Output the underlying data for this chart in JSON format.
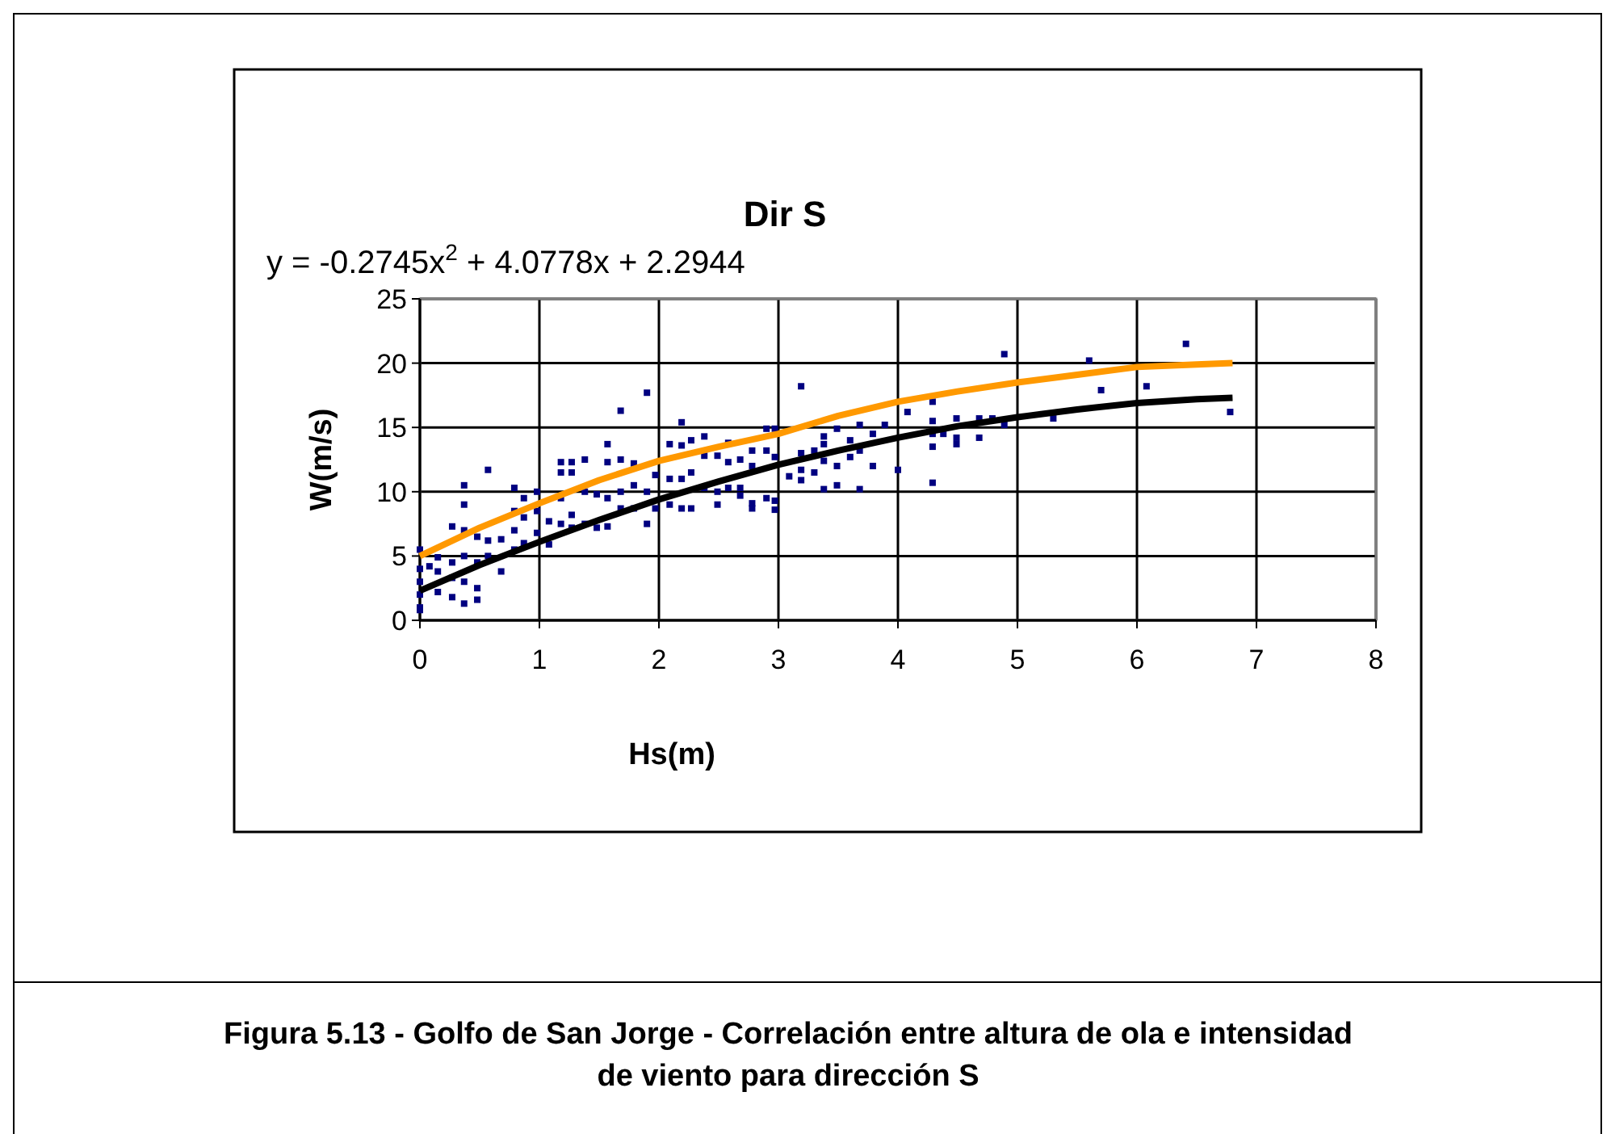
{
  "chart_data": {
    "type": "scatter",
    "title": "Dir S",
    "xlabel": "Hs(m)",
    "ylabel": "W(m/s)",
    "annotations": [
      "y = -0.2745x$^{2}$ + 4.0778x + 2.2944",
      "Figura 5.13 -  Golfo de San Jorge - Correlación entre altura de ola  e intensidad de viento para dirección S"
    ],
    "xlim": [
      0,
      8
    ],
    "ylim": [
      0,
      25
    ],
    "xticks": [
      0,
      1,
      2,
      3,
      4,
      5,
      6,
      7,
      8
    ],
    "yticks": [
      0,
      5,
      10,
      15,
      20,
      25
    ],
    "grid": true,
    "series": [
      {
        "color": "#000080",
        "marker": "square",
        "x": [
          0,
          0,
          0,
          0,
          0,
          0,
          0.08,
          0.15,
          0.15,
          0.15,
          0.27,
          0.27,
          0.27,
          0.27,
          0.37,
          0.37,
          0.37,
          0.37,
          0.37,
          0.37,
          0.48,
          0.48,
          0.48,
          0.48,
          0.57,
          0.57,
          0.57,
          0.68,
          0.68,
          0.79,
          0.79,
          0.79,
          0.79,
          0.87,
          0.87,
          0.87,
          0.98,
          0.98,
          0.98,
          1.08,
          1.08,
          1.18,
          1.18,
          1.18,
          1.18,
          1.27,
          1.27,
          1.27,
          1.27,
          1.38,
          1.38,
          1.38,
          1.48,
          1.48,
          1.57,
          1.57,
          1.57,
          1.57,
          1.68,
          1.68,
          1.68,
          1.68,
          1.79,
          1.79,
          1.79,
          1.9,
          1.9,
          1.9,
          1.97,
          1.97,
          2.09,
          2.09,
          2.09,
          2.19,
          2.19,
          2.19,
          2.19,
          2.27,
          2.27,
          2.27,
          2.38,
          2.38,
          2.38,
          2.49,
          2.49,
          2.49,
          2.58,
          2.58,
          2.58,
          2.68,
          2.68,
          2.68,
          2.78,
          2.78,
          2.78,
          2.78,
          2.9,
          2.9,
          2.9,
          2.97,
          2.97,
          2.97,
          2.97,
          3.09,
          3.19,
          3.19,
          3.19,
          3.19,
          3.3,
          3.3,
          3.38,
          3.38,
          3.38,
          3.38,
          3.49,
          3.49,
          3.49,
          3.6,
          3.6,
          3.68,
          3.68,
          3.68,
          3.79,
          3.79,
          3.89,
          4.0,
          4.08,
          4.29,
          4.29,
          4.29,
          4.29,
          4.29,
          4.38,
          4.49,
          4.49,
          4.49,
          4.68,
          4.68,
          4.79,
          4.89,
          4.89,
          5.3,
          5.6,
          5.7,
          6.08,
          6.41,
          6.78
        ],
        "values": [
          5.5,
          4,
          3,
          2,
          1,
          0.8,
          4.2,
          4.9,
          3.8,
          2.2,
          7.3,
          4.5,
          3.3,
          1.8,
          10.5,
          9,
          7,
          5,
          3,
          1.3,
          6.5,
          4.5,
          2.5,
          1.6,
          11.7,
          6.2,
          5,
          6.3,
          3.8,
          10.3,
          8.5,
          7,
          5.5,
          9.5,
          8,
          6,
          10,
          8.5,
          6.8,
          7.7,
          5.9,
          12.3,
          11.5,
          9.5,
          7.5,
          12.3,
          11.5,
          8.2,
          7.2,
          12.5,
          10,
          7.5,
          9.8,
          7.2,
          13.7,
          12.3,
          9.5,
          7.3,
          16.3,
          12.5,
          10,
          8.7,
          12.2,
          10.5,
          8.7,
          17.7,
          10,
          7.5,
          11.3,
          8.7,
          13.7,
          11,
          9,
          15.4,
          13.6,
          11,
          8.7,
          14,
          11.5,
          8.7,
          14.3,
          12.8,
          10.3,
          12.8,
          10,
          9,
          13.8,
          12.3,
          10.3,
          12.5,
          10.3,
          9.7,
          13.2,
          12,
          9.1,
          8.7,
          14.9,
          13.2,
          9.5,
          14.9,
          12.7,
          9.3,
          8.6,
          11.2,
          18.2,
          13,
          11.7,
          10.9,
          13.2,
          11.5,
          14.3,
          13.7,
          12.4,
          10.2,
          14.9,
          12,
          10.5,
          14,
          12.7,
          15.2,
          13.2,
          10.2,
          14.5,
          12,
          15.2,
          11.7,
          16.2,
          17,
          15.5,
          14.5,
          13.5,
          10.7,
          14.5,
          15.7,
          14.2,
          13.7,
          15.7,
          14.2,
          15.7,
          20.7,
          15.2,
          15.7,
          20.2,
          17.9,
          18.2,
          21.5,
          16.2
        ]
      },
      {
        "type": "line",
        "color": "#000000",
        "marker": "none",
        "x": [
          0,
          0.5,
          1,
          1.5,
          2,
          2.5,
          3,
          3.5,
          4,
          4.5,
          5,
          5.5,
          6,
          6.5,
          6.8
        ],
        "values": [
          2.3,
          4.3,
          6.1,
          7.8,
          9.4,
          10.8,
          12.1,
          13.2,
          14.2,
          15.1,
          15.8,
          16.4,
          16.9,
          17.2,
          17.3
        ]
      },
      {
        "type": "line",
        "color": "#ff9900",
        "marker": "none",
        "x": [
          0,
          0.5,
          1,
          1.5,
          2,
          2.5,
          3,
          3.5,
          4,
          4.5,
          5,
          5.5,
          6,
          6.5,
          6.8
        ],
        "values": [
          5,
          7.2,
          9.1,
          10.9,
          12.4,
          13.5,
          14.5,
          15.9,
          17,
          17.8,
          18.5,
          19.1,
          19.7,
          19.9,
          20
        ]
      }
    ]
  }
}
